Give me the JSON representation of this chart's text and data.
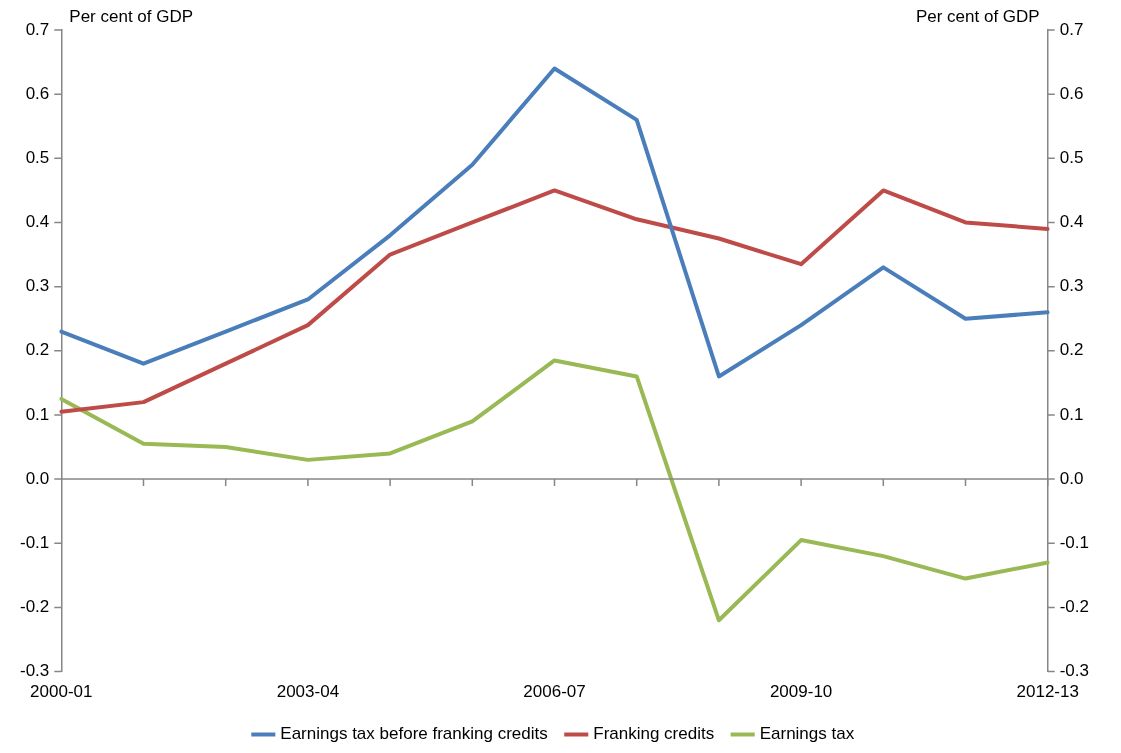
{
  "chart_data": {
    "type": "line",
    "categories": [
      "2000-01",
      null,
      null,
      "2003-04",
      null,
      null,
      "2006-07",
      null,
      null,
      "2009-10",
      null,
      null,
      "2012-13"
    ],
    "series": [
      {
        "name": "Earnings tax before franking credits",
        "color": "#4a7ebb",
        "values": [
          0.23,
          0.18,
          0.23,
          0.28,
          0.38,
          0.49,
          0.64,
          0.56,
          0.16,
          0.24,
          0.33,
          0.25,
          0.26
        ]
      },
      {
        "name": "Franking credits",
        "color": "#be4b48",
        "values": [
          0.105,
          0.12,
          0.18,
          0.24,
          0.35,
          0.4,
          0.45,
          0.405,
          0.375,
          0.335,
          0.45,
          0.4,
          0.39
        ]
      },
      {
        "name": "Earnings tax",
        "color": "#98b954",
        "values": [
          0.125,
          0.055,
          0.05,
          0.03,
          0.04,
          0.09,
          0.185,
          0.16,
          -0.22,
          -0.095,
          -0.12,
          -0.155,
          -0.13
        ]
      }
    ],
    "ylabel": "Per cent of GDP",
    "y2label": "Per cent of GDP",
    "ylim": [
      -0.3,
      0.7
    ],
    "yticks": [
      -0.3,
      -0.2,
      -0.1,
      {
        "value": 0,
        "label": "0.0"
      },
      0.1,
      0.2,
      0.3,
      0.4,
      0.5,
      0.6,
      0.7
    ],
    "y2lim": [
      -0.3,
      0.7
    ],
    "y2ticks": [
      -0.3,
      -0.2,
      -0.1,
      {
        "value": 0,
        "label": "0.0"
      },
      0.1,
      0.2,
      0.3,
      0.4,
      0.5,
      0.6,
      0.7
    ],
    "ref_lines": [
      {
        "axis": "y",
        "value": 0,
        "color": "#868686",
        "line_style": "solid"
      }
    ],
    "grid": false,
    "legend": "bottom",
    "marker": "none",
    "line_style": "solid"
  }
}
